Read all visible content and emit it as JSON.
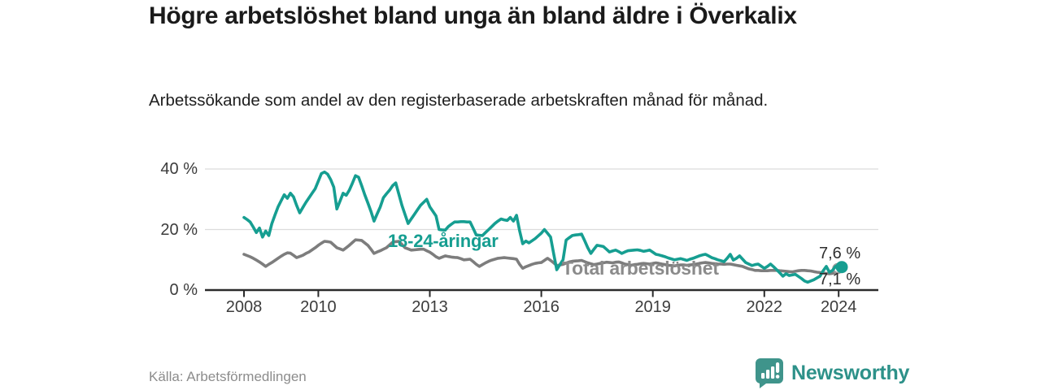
{
  "header": {
    "title": "Högre arbetslöshet bland unga än bland äldre i Överkalix",
    "subtitle": "Arbetssökande som andel av den registerbaserade arbetskraften månad för månad."
  },
  "footer": {
    "source": "Källa: Arbetsförmedlingen",
    "brand": "Newsworthy"
  },
  "colors": {
    "youth_line": "#169e91",
    "total_line": "#7d7d7d",
    "axis": "#2b2b2b",
    "grid": "#dcdcdc",
    "endpoint_total_stroke": "#9a9a9a",
    "logo_teal": "#3f948b"
  },
  "chart_data": {
    "type": "line",
    "title": "Högre arbetslöshet bland unga än bland äldre i Överkalix",
    "xlabel": "",
    "ylabel": "Arbetssökande som andel av den registerbaserade arbetskraften (%)",
    "frequency": "monthly",
    "x_start": "2008-01",
    "x_end": "2024-02",
    "ylim": [
      0,
      44
    ],
    "grid": "horizontal",
    "legend_position": "inline-labels",
    "x_ticks": [
      {
        "label": "2008",
        "year": 2008
      },
      {
        "label": "2010",
        "year": 2010
      },
      {
        "label": "2013",
        "year": 2013
      },
      {
        "label": "2016",
        "year": 2016
      },
      {
        "label": "2019",
        "year": 2019
      },
      {
        "label": "2022",
        "year": 2022
      },
      {
        "label": "2024",
        "year": 2024
      }
    ],
    "y_ticks": [
      {
        "label": "0 %",
        "value": 0
      },
      {
        "label": "20 %",
        "value": 20
      },
      {
        "label": "40 %",
        "value": 40
      }
    ],
    "series": [
      {
        "name": "Total arbetslöshet",
        "color": "#7d7d7d",
        "end_label": "7,1 %",
        "end_value": 7.1,
        "values": [
          11.8,
          11.4,
          11,
          10.5,
          9.9,
          9.3,
          8.6,
          7.8,
          8.5,
          9.1,
          9.8,
          10.5,
          11.2,
          11.8,
          12.3,
          12.2,
          11.5,
          10.7,
          11.1,
          11.5,
          12.1,
          12.6,
          13.3,
          14,
          14.8,
          15.5,
          16.1,
          16,
          15.8,
          14.9,
          14,
          13.6,
          13.2,
          14,
          14.8,
          15.7,
          16.6,
          16.5,
          16.4,
          15.6,
          14.8,
          13.5,
          12.1,
          12.6,
          13,
          13.5,
          14,
          14.9,
          15.8,
          16,
          16.1,
          15.1,
          14,
          13.6,
          13.2,
          13.3,
          13.4,
          13.5,
          13.5,
          13,
          12.5,
          11.8,
          11,
          10.5,
          10.9,
          11.3,
          11.1,
          10.9,
          10.8,
          10.7,
          10.4,
          10,
          10.1,
          10.2,
          9.4,
          8.5,
          7.8,
          8.4,
          9,
          9.5,
          9.9,
          10.2,
          10.5,
          10.6,
          10.7,
          10.6,
          10.5,
          10.4,
          10.2,
          8.5,
          7.2,
          7.7,
          8.1,
          8.5,
          8.8,
          9,
          9.1,
          9.8,
          10.5,
          9.8,
          9,
          8.1,
          8.3,
          8.5,
          8.9,
          9.3,
          9.5,
          9.6,
          9.7,
          9.8,
          9.4,
          9,
          8.7,
          8.4,
          8.6,
          8.8,
          9,
          9.2,
          9.1,
          9,
          9.2,
          9.3,
          9,
          8.6,
          8.4,
          8.2,
          8.4,
          8.5,
          8.7,
          8.8,
          8.7,
          8.6,
          8.8,
          9,
          8.8,
          8.6,
          8.4,
          8.2,
          8.1,
          8,
          8.2,
          8.3,
          8.3,
          8.2,
          8.3,
          8.4,
          8.6,
          8.8,
          9,
          9.1,
          9,
          8.8,
          8.7,
          8.6,
          8.6,
          8.5,
          8.6,
          8.6,
          8.4,
          8.2,
          8,
          7.8,
          7.4,
          7,
          6.8,
          6.5,
          6.5,
          6.4,
          6.4,
          6.4,
          6.5,
          6.5,
          6.5,
          6.4,
          6.3,
          6.2,
          6.1,
          6,
          6.2,
          6.4,
          6.5,
          6.5,
          6.4,
          6.3,
          6.1,
          5.9,
          5.8,
          5.6,
          5.5,
          5.4,
          5.5,
          5.8,
          6.5,
          7.1
        ]
      },
      {
        "name": "18-24-åringar",
        "color": "#169e91",
        "end_label": "7,6 %",
        "end_value": 7.6,
        "values": [
          24,
          23.3,
          22.5,
          20.8,
          19,
          20.5,
          17.5,
          19.5,
          18,
          22,
          24.8,
          27.5,
          29.5,
          31.5,
          30.3,
          32,
          30.8,
          28,
          25.5,
          27.3,
          29,
          30.5,
          32,
          33.5,
          36,
          38.5,
          39,
          38.3,
          36.5,
          34,
          26.8,
          29.4,
          32,
          31.3,
          33,
          35.3,
          37.8,
          37.3,
          34.5,
          31.5,
          28.8,
          26,
          22.8,
          25.2,
          27.5,
          30.5,
          31.8,
          33,
          34.5,
          35.4,
          31.7,
          28,
          25,
          22,
          23.5,
          25,
          26.5,
          28,
          29,
          30,
          27.5,
          26,
          24.5,
          20,
          19.9,
          19.8,
          21,
          21.8,
          22.5,
          22.5,
          22.6,
          22.6,
          22.5,
          22.5,
          20.4,
          18.2,
          18.1,
          18,
          19,
          20,
          21,
          22,
          22.8,
          23.5,
          23.2,
          23,
          24,
          22.8,
          24.7,
          19.6,
          15.3,
          16.2,
          15.6,
          16.3,
          17,
          17.9,
          18.8,
          20,
          18.8,
          17.5,
          12,
          6.7,
          8.4,
          10,
          16.5,
          17.3,
          18,
          18.2,
          18.3,
          18.5,
          16.3,
          14,
          12.1,
          13.5,
          14.8,
          14.6,
          14.4,
          13.5,
          12.6,
          12.9,
          13.2,
          12.7,
          12.1,
          12.6,
          13,
          13.1,
          13.2,
          13.3,
          13.1,
          12.8,
          13,
          13.2,
          12.5,
          11.8,
          11.6,
          11.3,
          11,
          10.6,
          10.3,
          10,
          10.2,
          10.4,
          10.1,
          9.8,
          10.2,
          10.5,
          10.9,
          11.3,
          11.6,
          11.8,
          11.3,
          10.7,
          10.4,
          10,
          9.7,
          9.4,
          10.5,
          11.8,
          9.9,
          10.5,
          11.3,
          10.2,
          9.1,
          8.6,
          8.1,
          8.4,
          8.6,
          7.9,
          7.2,
          7.8,
          8.6,
          7.7,
          6.7,
          5.7,
          4.6,
          5.4,
          4.8,
          5,
          5.2,
          4.5,
          3.8,
          3,
          2.6,
          3,
          3.4,
          4,
          4.6,
          6.4,
          7.8,
          5.9,
          6.5,
          7.8,
          8,
          7.6
        ]
      }
    ]
  }
}
